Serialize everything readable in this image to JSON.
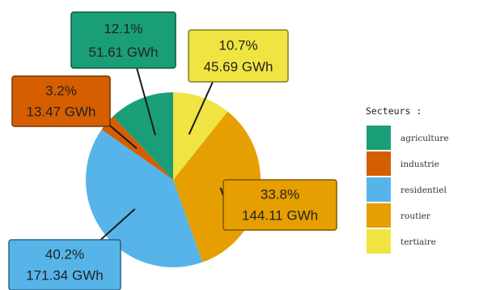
{
  "chart_data": {
    "type": "pie",
    "title": "",
    "legend": {
      "title": "Secteurs :",
      "position": "right"
    },
    "unit": "GWh",
    "slices": [
      {
        "name": "agriculture",
        "value": 51.61,
        "percent": "12.1%",
        "value_label": "51.61 GWh",
        "color": "#1a9e77"
      },
      {
        "name": "industrie",
        "value": 13.47,
        "percent": "3.2%",
        "value_label": "13.47 GWh",
        "color": "#d55e00"
      },
      {
        "name": "residentiel",
        "value": 171.34,
        "percent": "40.2%",
        "value_label": "171.34 GWh",
        "color": "#56b4e9"
      },
      {
        "name": "routier",
        "value": 144.11,
        "percent": "33.8%",
        "value_label": "144.11 GWh",
        "color": "#e69f00"
      },
      {
        "name": "tertiaire",
        "value": 45.69,
        "percent": "10.7%",
        "value_label": "45.69 GWh",
        "color": "#f0e442"
      }
    ]
  }
}
